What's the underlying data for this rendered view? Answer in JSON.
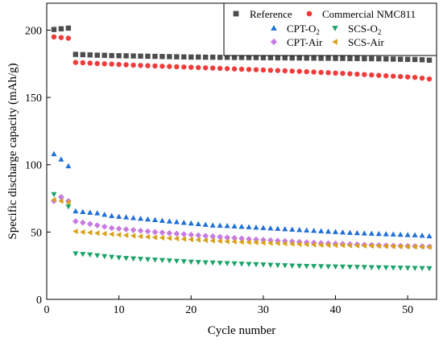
{
  "chart_data": {
    "type": "scatter",
    "xlabel": "Cycle number",
    "ylabel": "Specific discharge capacity (mAh/g)",
    "xlim": [
      0,
      54
    ],
    "ylim": [
      0,
      220
    ],
    "xticks": [
      0,
      10,
      20,
      30,
      40,
      50
    ],
    "yticks": [
      0,
      50,
      100,
      150,
      200
    ],
    "grid": false,
    "legend_position": "top-right",
    "series": [
      {
        "name": "Reference",
        "marker": "square",
        "color": "#4d4d4d",
        "x": [
          1,
          2,
          3,
          4,
          5,
          6,
          7,
          8,
          9,
          10,
          11,
          12,
          13,
          14,
          15,
          16,
          17,
          18,
          19,
          20,
          21,
          22,
          23,
          24,
          25,
          26,
          27,
          28,
          29,
          30,
          31,
          32,
          33,
          34,
          35,
          36,
          37,
          38,
          39,
          40,
          41,
          42,
          43,
          44,
          45,
          46,
          47,
          48,
          49,
          50,
          51,
          52,
          53
        ],
        "y": [
          200.5,
          201,
          201.5,
          182,
          181.8,
          181.6,
          181.4,
          181.3,
          181.1,
          181,
          180.9,
          180.8,
          180.7,
          180.6,
          180.5,
          180.4,
          180.3,
          180.2,
          180.1,
          180,
          180,
          179.9,
          179.9,
          179.8,
          179.8,
          179.7,
          179.7,
          179.6,
          179.6,
          179.5,
          179.5,
          179.4,
          179.4,
          179.3,
          179.3,
          179.2,
          179.2,
          179.1,
          179.1,
          179,
          179,
          178.9,
          178.9,
          178.8,
          178.8,
          178.7,
          178.6,
          178.5,
          178.4,
          178.3,
          178.2,
          178,
          177.7
        ]
      },
      {
        "name": "Commercial NMC811",
        "marker": "circle",
        "color": "#ef3b3b",
        "x": [
          1,
          2,
          3,
          4,
          5,
          6,
          7,
          8,
          9,
          10,
          11,
          12,
          13,
          14,
          15,
          16,
          17,
          18,
          19,
          20,
          21,
          22,
          23,
          24,
          25,
          26,
          27,
          28,
          29,
          30,
          31,
          32,
          33,
          34,
          35,
          36,
          37,
          38,
          39,
          40,
          41,
          42,
          43,
          44,
          45,
          46,
          47,
          48,
          49,
          50,
          51,
          52,
          53
        ],
        "y": [
          195,
          194.5,
          194,
          176,
          175.8,
          175.5,
          175.2,
          175,
          174.8,
          174.5,
          174.3,
          174,
          173.8,
          173.6,
          173.4,
          173.2,
          173,
          172.8,
          172.6,
          172.4,
          172.2,
          172,
          171.8,
          171.6,
          171.4,
          171.2,
          171,
          170.8,
          170.6,
          170.4,
          170.2,
          170,
          169.8,
          169.6,
          169.4,
          169.1,
          168.9,
          168.6,
          168.4,
          168.1,
          167.9,
          167.6,
          167.3,
          167,
          166.7,
          166.4,
          166.1,
          165.8,
          165.5,
          165.2,
          164.9,
          164.3,
          163.7
        ]
      },
      {
        "name": "CPT-O2",
        "label_main": "CPT-O",
        "label_sub": "2",
        "marker": "triangle-up",
        "color": "#1f6fd6",
        "x": [
          1,
          2,
          3,
          4,
          5,
          6,
          7,
          8,
          9,
          10,
          11,
          12,
          13,
          14,
          15,
          16,
          17,
          18,
          19,
          20,
          21,
          22,
          23,
          24,
          25,
          26,
          27,
          28,
          29,
          30,
          31,
          32,
          33,
          34,
          35,
          36,
          37,
          38,
          39,
          40,
          41,
          42,
          43,
          44,
          45,
          46,
          47,
          48,
          49,
          50,
          51,
          52,
          53
        ],
        "y": [
          108,
          104,
          99,
          65.5,
          65,
          64.5,
          64,
          63,
          62,
          61.5,
          61,
          60.5,
          60,
          59.5,
          59,
          58.5,
          58,
          57.5,
          57,
          56.5,
          56,
          55.5,
          55,
          54.8,
          54.6,
          54.3,
          54,
          53.7,
          53.4,
          53.1,
          52.8,
          52.5,
          52.2,
          51.9,
          51.6,
          51.3,
          51,
          50.7,
          50.4,
          50.1,
          49.8,
          49.5,
          49.3,
          49.1,
          48.9,
          48.7,
          48.5,
          48.3,
          48.1,
          47.9,
          47.7,
          47.4,
          47
        ]
      },
      {
        "name": "SCS-O2",
        "label_main": "SCS-O",
        "label_sub": "2",
        "marker": "triangle-down",
        "color": "#1aa36a",
        "x": [
          1,
          2,
          3,
          4,
          5,
          6,
          7,
          8,
          9,
          10,
          11,
          12,
          13,
          14,
          15,
          16,
          17,
          18,
          19,
          20,
          21,
          22,
          23,
          24,
          25,
          26,
          27,
          28,
          29,
          30,
          31,
          32,
          33,
          34,
          35,
          36,
          37,
          38,
          39,
          40,
          41,
          42,
          43,
          44,
          45,
          46,
          47,
          48,
          49,
          50,
          51,
          52,
          53
        ],
        "y": [
          78,
          75,
          69,
          34,
          33.6,
          33.2,
          32.6,
          32,
          31.5,
          31,
          30.6,
          30.3,
          30,
          29.7,
          29.4,
          29.1,
          28.8,
          28.5,
          28.2,
          27.9,
          27.6,
          27.4,
          27.2,
          27,
          26.8,
          26.6,
          26.4,
          26.2,
          26,
          25.8,
          25.6,
          25.4,
          25.2,
          25,
          24.8,
          24.7,
          24.6,
          24.5,
          24.4,
          24.3,
          24.2,
          24.1,
          24,
          23.9,
          23.8,
          23.7,
          23.6,
          23.5,
          23.4,
          23.3,
          23.2,
          23.1,
          23
        ]
      },
      {
        "name": "CPT-Air",
        "marker": "diamond",
        "color": "#c77be0",
        "x": [
          1,
          2,
          3,
          4,
          5,
          6,
          7,
          8,
          9,
          10,
          11,
          12,
          13,
          14,
          15,
          16,
          17,
          18,
          19,
          20,
          21,
          22,
          23,
          24,
          25,
          26,
          27,
          28,
          29,
          30,
          31,
          32,
          33,
          34,
          35,
          36,
          37,
          38,
          39,
          40,
          41,
          42,
          43,
          44,
          45,
          46,
          47,
          48,
          49,
          50,
          51,
          52,
          53
        ],
        "y": [
          73,
          76,
          73,
          58,
          57,
          56,
          55,
          54,
          53,
          52.5,
          52,
          51.5,
          51,
          50.5,
          50,
          49.6,
          49.2,
          48.8,
          48.4,
          48,
          47.6,
          47.2,
          46.8,
          46.4,
          46,
          45.6,
          45.2,
          44.8,
          44.5,
          44.2,
          43.9,
          43.6,
          43.3,
          43,
          42.7,
          42.4,
          42.1,
          41.8,
          41.6,
          41.4,
          41.2,
          41,
          40.8,
          40.6,
          40.4,
          40.2,
          40,
          39.8,
          39.7,
          39.6,
          39.5,
          39.4,
          39.2
        ]
      },
      {
        "name": "SCS-Air",
        "marker": "triangle-left",
        "color": "#d9a11a",
        "x": [
          1,
          2,
          3,
          4,
          5,
          6,
          7,
          8,
          9,
          10,
          11,
          12,
          13,
          14,
          15,
          16,
          17,
          18,
          19,
          20,
          21,
          22,
          23,
          24,
          25,
          26,
          27,
          28,
          29,
          30,
          31,
          32,
          33,
          34,
          35,
          36,
          37,
          38,
          39,
          40,
          41,
          42,
          43,
          44,
          45,
          46,
          47,
          48,
          49,
          50,
          51,
          52,
          53
        ],
        "y": [
          74,
          73,
          72,
          50.5,
          50,
          49.6,
          49.2,
          48.8,
          48.4,
          48,
          47.6,
          47.2,
          46.8,
          46.4,
          46,
          45.7,
          45.4,
          45.1,
          44.8,
          44.5,
          44.2,
          43.9,
          43.6,
          43.3,
          43,
          42.8,
          42.6,
          42.4,
          42.2,
          42,
          41.8,
          41.6,
          41.4,
          41.2,
          41,
          40.8,
          40.6,
          40.4,
          40.3,
          40.2,
          40.1,
          40,
          39.9,
          39.8,
          39.7,
          39.6,
          39.5,
          39.4,
          39.3,
          39.2,
          39.1,
          39,
          38.8
        ]
      }
    ]
  }
}
